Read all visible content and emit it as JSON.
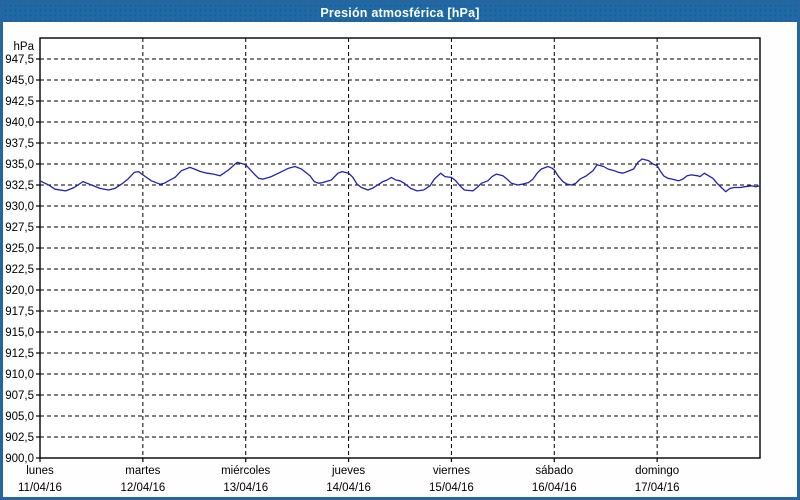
{
  "window": {
    "title": "Presión atmosférica [hPa]"
  },
  "colors": {
    "titlebar": "#2069a4",
    "frame_border": "#24669d",
    "panel_background": "#fdfefd",
    "plot_background": "#ffffff",
    "grid": "#000000",
    "axis": "#000000",
    "series_line": "#2222b0",
    "title_text": "#ffffff",
    "label_text": "#000000"
  },
  "chart_data": {
    "type": "line",
    "title": "Presión atmosférica [hPa]",
    "y_unit_label": "hPa",
    "ylim": [
      900.0,
      950.0
    ],
    "y_tick_step": 2.5,
    "grid": true,
    "grid_style": "dashed",
    "legend": "none",
    "y_ticks": [
      {
        "value": 947.5,
        "label": "947,5"
      },
      {
        "value": 945.0,
        "label": "945,0"
      },
      {
        "value": 942.5,
        "label": "942,5"
      },
      {
        "value": 940.0,
        "label": "940,0"
      },
      {
        "value": 937.5,
        "label": "937,5"
      },
      {
        "value": 935.0,
        "label": "935,0"
      },
      {
        "value": 932.5,
        "label": "932,5"
      },
      {
        "value": 930.0,
        "label": "930,0"
      },
      {
        "value": 927.5,
        "label": "927,5"
      },
      {
        "value": 925.0,
        "label": "925,0"
      },
      {
        "value": 922.5,
        "label": "922,5"
      },
      {
        "value": 920.0,
        "label": "920,0"
      },
      {
        "value": 917.5,
        "label": "917,5"
      },
      {
        "value": 915.0,
        "label": "915,0"
      },
      {
        "value": 912.5,
        "label": "912,5"
      },
      {
        "value": 910.0,
        "label": "910,0"
      },
      {
        "value": 907.5,
        "label": "907,5"
      },
      {
        "value": 905.0,
        "label": "905,0"
      },
      {
        "value": 902.5,
        "label": "902,5"
      },
      {
        "value": 900.0,
        "label": "900,0"
      }
    ],
    "x_total_hours": 168,
    "x_ticks": [
      {
        "hour": 0,
        "day": "lunes",
        "date": "11/04/16"
      },
      {
        "hour": 24,
        "day": "martes",
        "date": "12/04/16"
      },
      {
        "hour": 48,
        "day": "miércoles",
        "date": "13/04/16"
      },
      {
        "hour": 72,
        "day": "jueves",
        "date": "14/04/16"
      },
      {
        "hour": 96,
        "day": "viernes",
        "date": "15/04/16"
      },
      {
        "hour": 120,
        "day": "sábado",
        "date": "16/04/16"
      },
      {
        "hour": 144,
        "day": "domingo",
        "date": "17/04/16"
      }
    ],
    "series": [
      {
        "name": "presión atmosférica",
        "points": [
          [
            0,
            933.0
          ],
          [
            2,
            932.5
          ],
          [
            3.5,
            932.0
          ],
          [
            6,
            931.8
          ],
          [
            8,
            932.2
          ],
          [
            10,
            932.9
          ],
          [
            12,
            932.5
          ],
          [
            14,
            932.1
          ],
          [
            16,
            931.9
          ],
          [
            17.5,
            932.1
          ],
          [
            19,
            932.6
          ],
          [
            20.5,
            933.2
          ],
          [
            22,
            934.0
          ],
          [
            23,
            934.1
          ],
          [
            24,
            933.7
          ],
          [
            26,
            933.0
          ],
          [
            28,
            932.6
          ],
          [
            29,
            932.7
          ],
          [
            30,
            933.0
          ],
          [
            31.5,
            933.4
          ],
          [
            33,
            934.2
          ],
          [
            35,
            934.6
          ],
          [
            36,
            934.4
          ],
          [
            37.5,
            934.1
          ],
          [
            39,
            933.9
          ],
          [
            40.5,
            933.8
          ],
          [
            42,
            933.6
          ],
          [
            44,
            934.3
          ],
          [
            46,
            935.2
          ],
          [
            48,
            934.9
          ],
          [
            50,
            933.8
          ],
          [
            51,
            933.3
          ],
          [
            52,
            933.2
          ],
          [
            54,
            933.5
          ],
          [
            56,
            934.0
          ],
          [
            58,
            934.5
          ],
          [
            59.5,
            934.7
          ],
          [
            61,
            934.4
          ],
          [
            63,
            933.6
          ],
          [
            64,
            932.9
          ],
          [
            65,
            932.7
          ],
          [
            66,
            932.8
          ],
          [
            68,
            933.1
          ],
          [
            69.5,
            933.9
          ],
          [
            70.5,
            934.1
          ],
          [
            72,
            933.9
          ],
          [
            73,
            933.4
          ],
          [
            74,
            932.6
          ],
          [
            75,
            932.2
          ],
          [
            76.5,
            931.9
          ],
          [
            77.5,
            932.1
          ],
          [
            78.5,
            932.4
          ],
          [
            80,
            932.9
          ],
          [
            81,
            933.1
          ],
          [
            82,
            933.4
          ],
          [
            83,
            933.1
          ],
          [
            84,
            933.0
          ],
          [
            85,
            932.7
          ],
          [
            86.5,
            932.1
          ],
          [
            88,
            931.8
          ],
          [
            89.5,
            931.9
          ],
          [
            91,
            932.4
          ],
          [
            92,
            933.2
          ],
          [
            93.5,
            933.9
          ],
          [
            94.5,
            933.5
          ],
          [
            96,
            933.4
          ],
          [
            97,
            933.0
          ],
          [
            98,
            932.4
          ],
          [
            99,
            931.9
          ],
          [
            101,
            931.8
          ],
          [
            102,
            932.2
          ],
          [
            103,
            932.7
          ],
          [
            104.5,
            933.0
          ],
          [
            105.5,
            933.5
          ],
          [
            106.5,
            933.8
          ],
          [
            108,
            933.6
          ],
          [
            109,
            933.2
          ],
          [
            110,
            932.7
          ],
          [
            111.5,
            932.5
          ],
          [
            112.5,
            932.6
          ],
          [
            114,
            932.8
          ],
          [
            115,
            933.2
          ],
          [
            116,
            933.9
          ],
          [
            117,
            934.4
          ],
          [
            118.5,
            934.7
          ],
          [
            119.5,
            934.5
          ],
          [
            120,
            934.3
          ],
          [
            121,
            933.5
          ],
          [
            122,
            932.9
          ],
          [
            123,
            932.6
          ],
          [
            124,
            932.5
          ],
          [
            125,
            932.7
          ],
          [
            126,
            933.2
          ],
          [
            127.5,
            933.6
          ],
          [
            129,
            934.2
          ],
          [
            130,
            934.9
          ],
          [
            131.5,
            934.7
          ],
          [
            132.5,
            934.4
          ],
          [
            134,
            934.2
          ],
          [
            135,
            934.0
          ],
          [
            136,
            933.9
          ],
          [
            137,
            934.1
          ],
          [
            138.5,
            934.4
          ],
          [
            139.5,
            935.2
          ],
          [
            140.5,
            935.6
          ],
          [
            142,
            935.4
          ],
          [
            143,
            935.0
          ],
          [
            144,
            934.8
          ],
          [
            144.7,
            934.2
          ],
          [
            145.5,
            933.6
          ],
          [
            146.5,
            933.3
          ],
          [
            147.5,
            933.2
          ],
          [
            149,
            933.0
          ],
          [
            150,
            933.2
          ],
          [
            151,
            933.6
          ],
          [
            152,
            933.7
          ],
          [
            153.5,
            933.6
          ],
          [
            154,
            933.5
          ],
          [
            155,
            933.9
          ],
          [
            156,
            933.6
          ],
          [
            157,
            933.3
          ],
          [
            158,
            932.7
          ],
          [
            159,
            932.2
          ],
          [
            160,
            931.7
          ],
          [
            161,
            932.1
          ],
          [
            162,
            932.2
          ],
          [
            163.5,
            932.2
          ],
          [
            164.5,
            932.3
          ],
          [
            166,
            932.4
          ],
          [
            167,
            932.3
          ],
          [
            168,
            932.4
          ]
        ]
      }
    ]
  }
}
